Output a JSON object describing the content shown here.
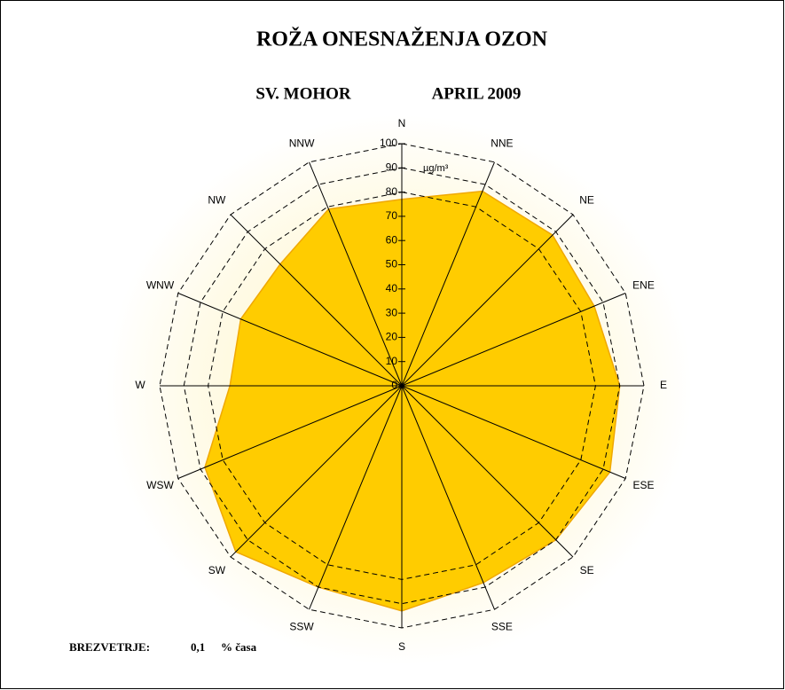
{
  "chart_data": {
    "type": "radar",
    "title": "ROŽA ONESNAŽENJA OZON",
    "subtitle": [
      "SV. MOHOR",
      "APRIL 2009"
    ],
    "unit": "µg/m³",
    "categories": [
      "N",
      "NNE",
      "NE",
      "ENE",
      "E",
      "ESE",
      "SE",
      "SSE",
      "S",
      "SSW",
      "SW",
      "WSW",
      "W",
      "WNW",
      "NW",
      "NNW"
    ],
    "series": [
      {
        "name": "OZON",
        "color": "#ffcc00",
        "values": [
          77,
          87,
          88,
          86,
          90,
          93,
          90,
          88,
          93,
          90,
          97,
          88,
          71,
          72,
          71,
          79
        ]
      }
    ],
    "ylim": [
      0,
      100
    ],
    "yticks": [
      0,
      10,
      20,
      30,
      40,
      50,
      60,
      70,
      80,
      90,
      100
    ],
    "grid_rings": [
      80,
      90,
      100
    ],
    "calm": {
      "label": "BREZVETRJE:",
      "value": 0.1,
      "value_label": "0,1",
      "unit": "% časa"
    }
  }
}
